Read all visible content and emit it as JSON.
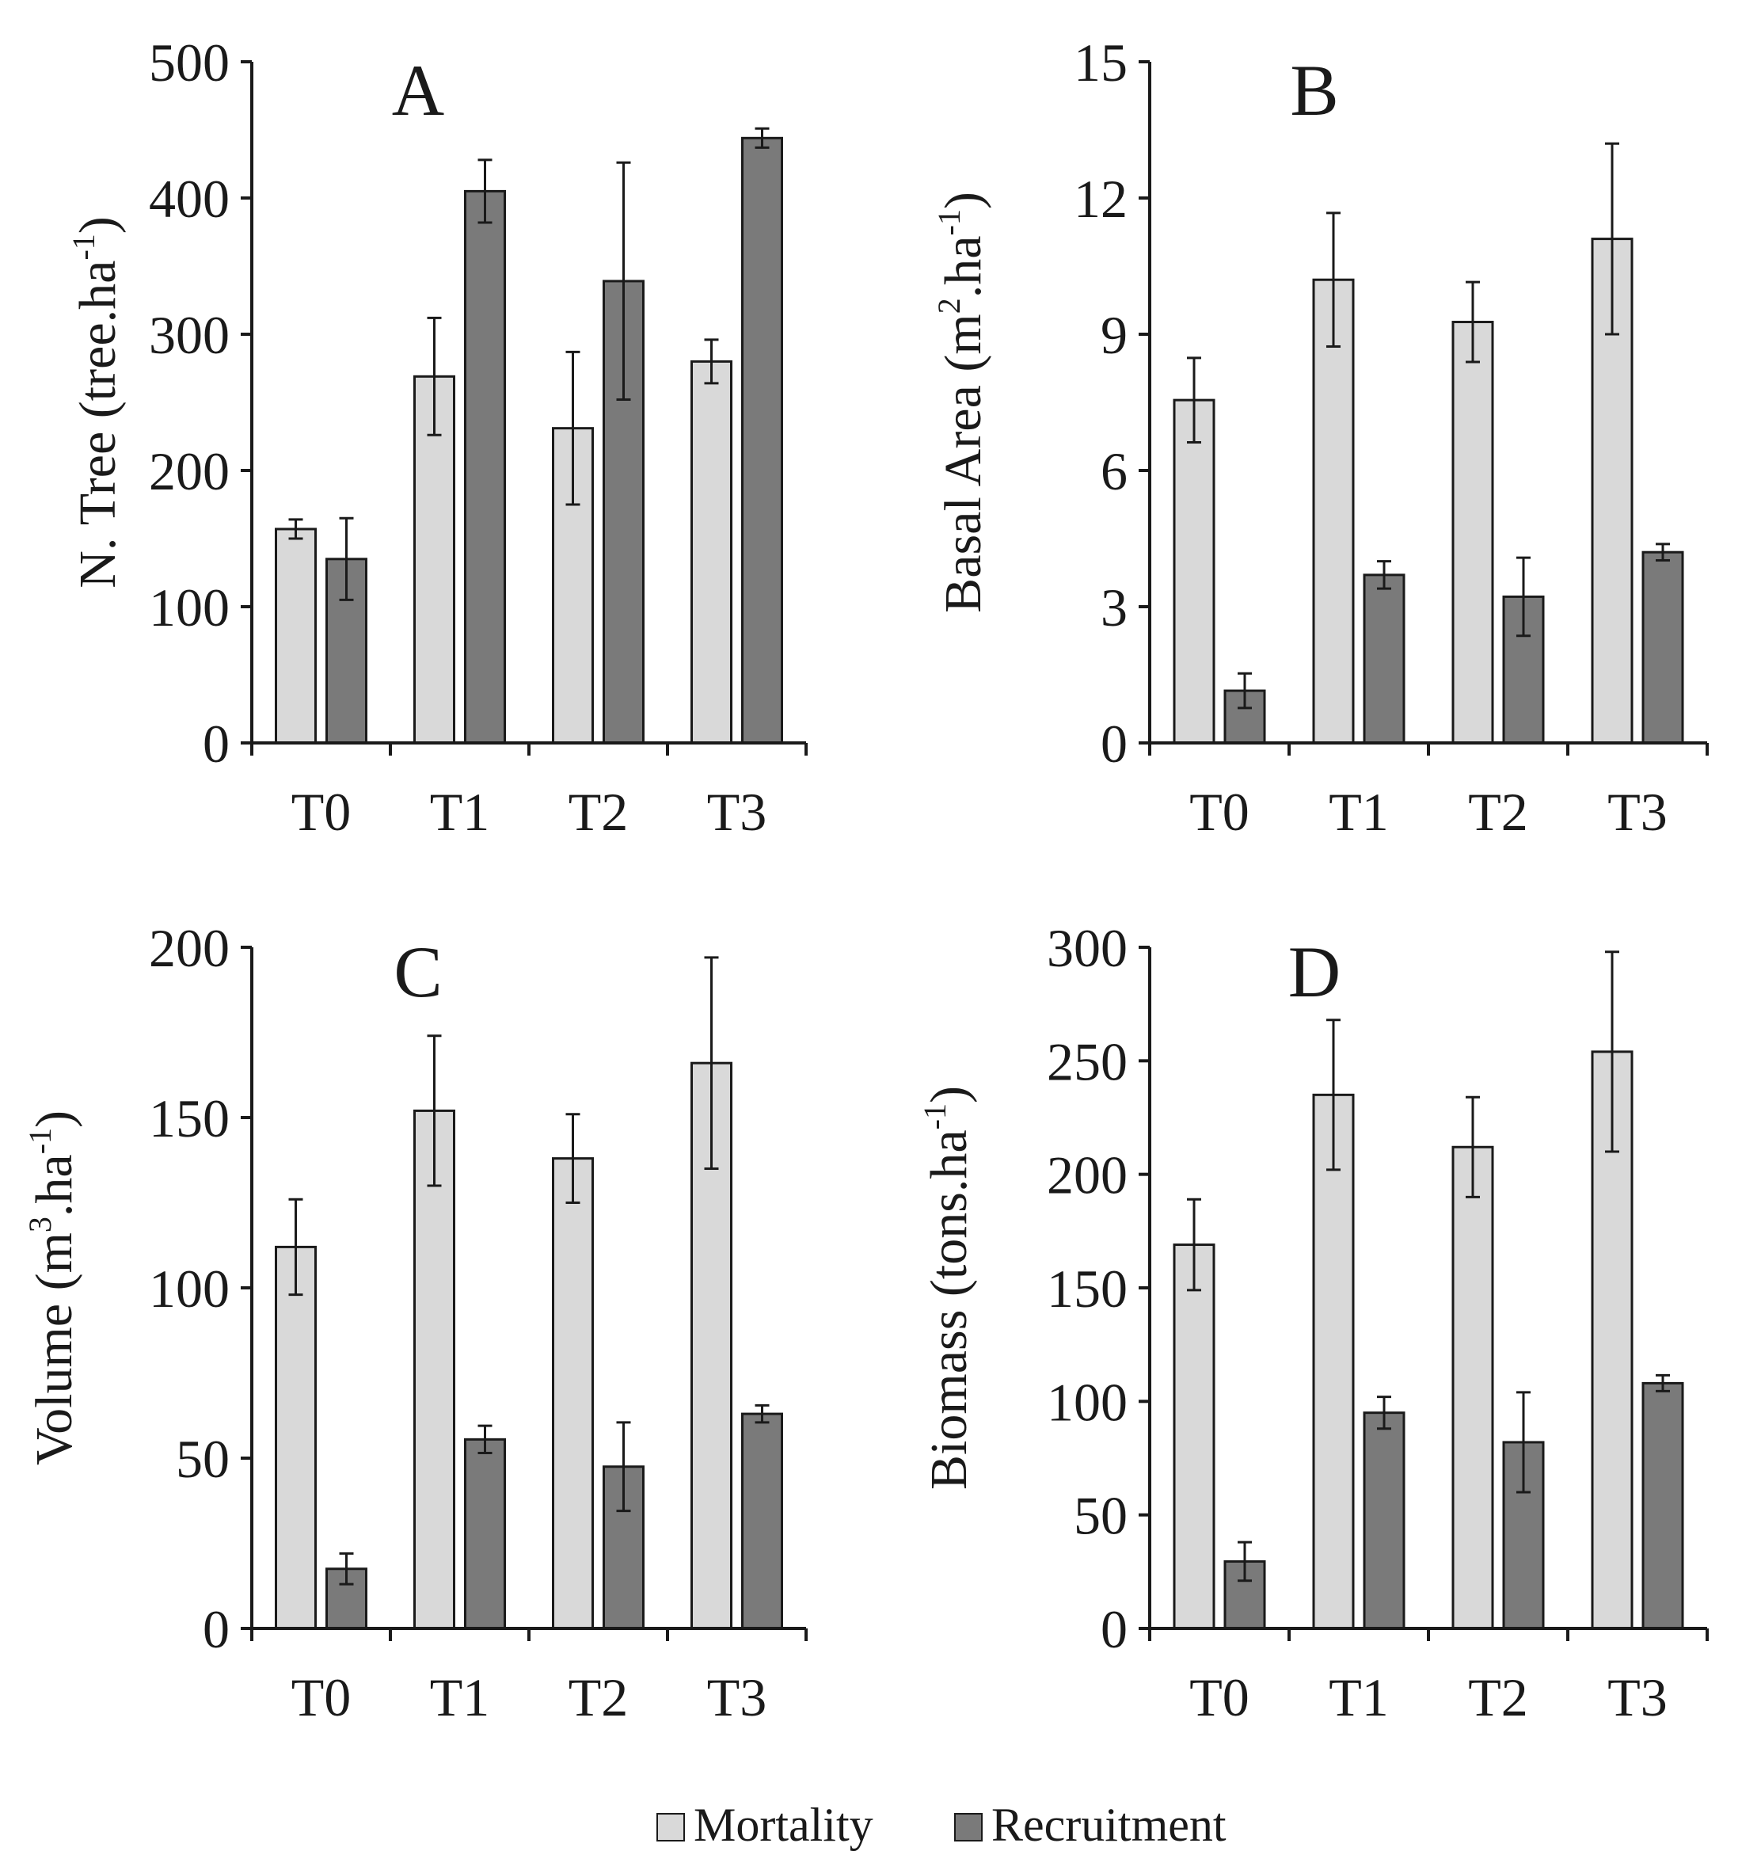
{
  "legend": {
    "items": [
      {
        "label": "Mortality",
        "color": "#d9d9d9"
      },
      {
        "label": "Recruitment",
        "color": "#7a7a7a"
      }
    ],
    "placement": "bottom-center"
  },
  "colors": {
    "mortality": "#d9d9d9",
    "recruitment": "#7a7a7a",
    "stroke": "#1a1a1a"
  },
  "chart_data": [
    {
      "type": "bar",
      "panel": "A",
      "title": "",
      "ylabel": {
        "pre": "N. Tree (tree.ha",
        "sup": "-1",
        "post": ")"
      },
      "categories": [
        "T0",
        "T1",
        "T2",
        "T3"
      ],
      "ylim": [
        0,
        500
      ],
      "yticks": [
        0,
        100,
        200,
        300,
        400,
        500
      ],
      "series": [
        {
          "name": "Mortality",
          "values": [
            157,
            269,
            231,
            280
          ],
          "errors": [
            7,
            43,
            56,
            16
          ]
        },
        {
          "name": "Recruitment",
          "values": [
            135,
            405,
            339,
            444
          ],
          "errors": [
            30,
            23,
            87,
            7
          ]
        }
      ]
    },
    {
      "type": "bar",
      "panel": "B",
      "title": "",
      "ylabel": {
        "pre": "Basal Area (m",
        "sup": "2",
        "post": ".ha",
        "sup2": "-1",
        "post2": ")"
      },
      "categories": [
        "T0",
        "T1",
        "T2",
        "T3"
      ],
      "ylim": [
        0,
        15
      ],
      "yticks": [
        0,
        3,
        6,
        9,
        12,
        15
      ],
      "series": [
        {
          "name": "Mortality",
          "values": [
            7.55,
            10.2,
            9.27,
            11.1
          ],
          "errors": [
            0.93,
            1.47,
            0.88,
            2.1
          ]
        },
        {
          "name": "Recruitment",
          "values": [
            1.15,
            3.7,
            3.22,
            4.2
          ],
          "errors": [
            0.38,
            0.3,
            0.86,
            0.18
          ]
        }
      ]
    },
    {
      "type": "bar",
      "panel": "C",
      "title": "",
      "ylabel": {
        "pre": "Volume (m",
        "sup": "3",
        "post": ".ha",
        "sup2": "-1",
        "post2": ")"
      },
      "categories": [
        "T0",
        "T1",
        "T2",
        "T3"
      ],
      "ylim": [
        0,
        200
      ],
      "yticks": [
        0,
        50,
        100,
        150,
        200
      ],
      "series": [
        {
          "name": "Mortality",
          "values": [
            112,
            152,
            138,
            166
          ],
          "errors": [
            14,
            22,
            13,
            31
          ]
        },
        {
          "name": "Recruitment",
          "values": [
            17.5,
            55.5,
            47.5,
            63
          ],
          "errors": [
            4.5,
            4,
            13,
            2.5
          ]
        }
      ]
    },
    {
      "type": "bar",
      "panel": "D",
      "title": "",
      "ylabel": {
        "pre": "Biomass (tons.ha",
        "sup": "-1",
        "post": ")"
      },
      "categories": [
        "T0",
        "T1",
        "T2",
        "T3"
      ],
      "ylim": [
        0,
        300
      ],
      "yticks": [
        0,
        50,
        100,
        150,
        200,
        250,
        300
      ],
      "series": [
        {
          "name": "Mortality",
          "values": [
            169,
            235,
            212,
            254
          ],
          "errors": [
            20,
            33,
            22,
            44
          ]
        },
        {
          "name": "Recruitment",
          "values": [
            29.5,
            95,
            82,
            108
          ],
          "errors": [
            8.5,
            7,
            22,
            3.5
          ]
        }
      ]
    }
  ]
}
